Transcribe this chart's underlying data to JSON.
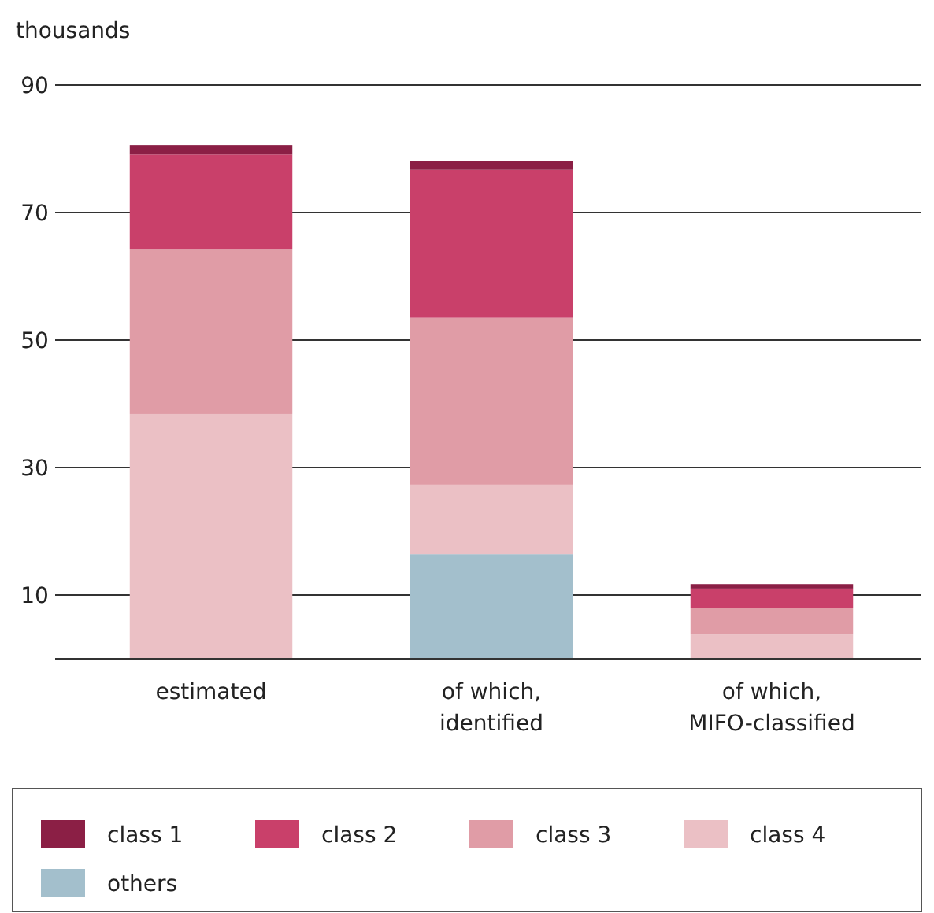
{
  "chart_data": {
    "type": "bar",
    "stacked": true,
    "ylabel": "thousands",
    "categories": [
      "estimated",
      "of which, identified",
      "of which, MIFO-classified"
    ],
    "series": [
      {
        "name": "others",
        "color": "#a3bfcc",
        "values": [
          0,
          16.4,
          0
        ]
      },
      {
        "name": "class 4",
        "color": "#ebc0c5",
        "values": [
          38.4,
          10.9,
          3.8
        ]
      },
      {
        "name": "class 3",
        "color": "#e09ca6",
        "values": [
          25.9,
          26.2,
          4.2
        ]
      },
      {
        "name": "class 2",
        "color": "#c9406a",
        "values": [
          14.8,
          23.2,
          3.0
        ]
      },
      {
        "name": "class 1",
        "color": "#8b1f45",
        "values": [
          1.5,
          1.4,
          0.7
        ]
      }
    ],
    "ylim": [
      0,
      90
    ],
    "yticks": [
      10,
      30,
      50,
      70,
      90
    ],
    "grid": "y",
    "legend": "bottom"
  }
}
